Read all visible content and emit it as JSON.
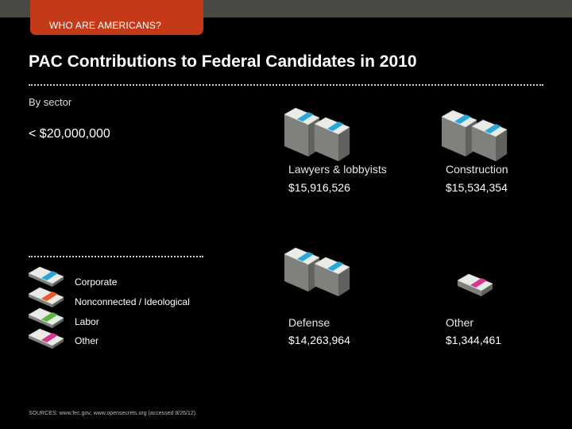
{
  "header": {
    "section_tab": "WHO ARE AMERICANS?",
    "title": "PAC Contributions to Federal Candidates in 2010",
    "subtitle": "By sector",
    "scale_label": "< $20,000,000"
  },
  "legend": {
    "items": [
      {
        "label": "Corporate",
        "color": "#2aa7d8"
      },
      {
        "label": "Nonconnected / Ideological",
        "color": "#e85a2a"
      },
      {
        "label": "Labor",
        "color": "#5cb63b"
      },
      {
        "label": "Other",
        "color": "#d6368f"
      }
    ]
  },
  "source": "SOURCES: www.fec.gov; www.opensecrets.org (accessed 9/26/12).",
  "colors": {
    "background": "#000000",
    "tab": "#c43a18",
    "topbar": "#4a4a44",
    "bill": "#e9ece6",
    "bill_edge": "#7e817c"
  },
  "chart_data": {
    "type": "pictograph",
    "title": "PAC Contributions to Federal Candidates in 2010",
    "subtitle": "By sector",
    "unit": "USD",
    "categories": [
      "Lawyers & lobbyists",
      "Construction",
      "Defense",
      "Other"
    ],
    "values": [
      15916526,
      15534354,
      14263964,
      1344461
    ],
    "value_labels": [
      "$15,916,526",
      "$15,534,354",
      "$14,263,964",
      "$1,344,461"
    ],
    "band_colors": [
      "#2aa7d8",
      "#2aa7d8",
      "#2aa7d8",
      "#d6368f"
    ],
    "legend": [
      "Corporate",
      "Nonconnected / Ideological",
      "Labor",
      "Other"
    ],
    "scale_label": "< $20,000,000"
  }
}
